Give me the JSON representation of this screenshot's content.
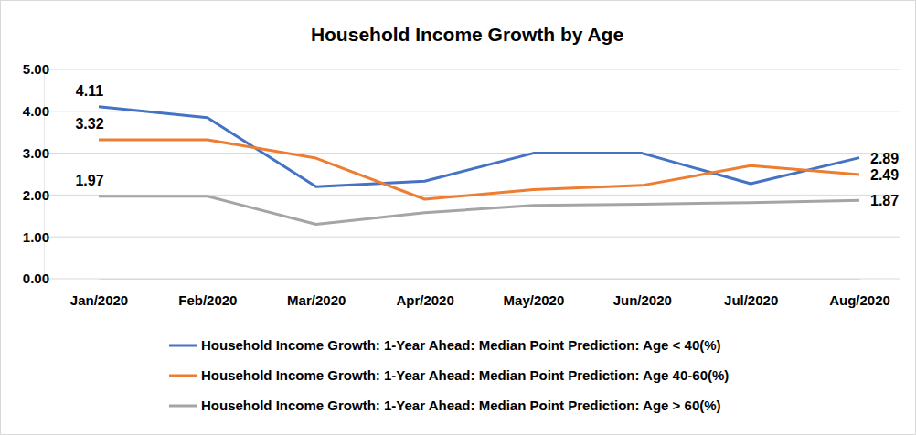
{
  "chart_data": {
    "type": "line",
    "title": "Household Income Growth by Age",
    "categories": [
      "Jan/2020",
      "Feb/2020",
      "Mar/2020",
      "Apr/2020",
      "May/2020",
      "Jun/2020",
      "Jul/2020",
      "Aug/2020"
    ],
    "series": [
      {
        "name": "Household Income Growth: 1-Year Ahead: Median Point Prediction: Age < 40(%)",
        "color": "#4472c4",
        "values": [
          4.11,
          3.85,
          2.2,
          2.33,
          3.0,
          3.0,
          2.27,
          2.89
        ],
        "value_labels": [
          "4.11",
          null,
          null,
          null,
          null,
          null,
          null,
          "2.89"
        ]
      },
      {
        "name": "Household Income Growth: 1-Year Ahead: Median Point Prediction: Age 40-60(%)",
        "color": "#ed7d31",
        "values": [
          3.32,
          3.32,
          2.88,
          1.9,
          2.13,
          2.23,
          2.7,
          2.49
        ],
        "value_labels": [
          "3.32",
          null,
          null,
          null,
          null,
          null,
          null,
          "2.49"
        ]
      },
      {
        "name": "Household Income Growth: 1-Year Ahead: Median Point Prediction: Age > 60(%)",
        "color": "#a5a5a5",
        "values": [
          1.97,
          1.97,
          1.3,
          1.58,
          1.75,
          1.78,
          1.82,
          1.87
        ],
        "value_labels": [
          "1.97",
          null,
          null,
          null,
          null,
          null,
          null,
          "1.87"
        ]
      }
    ],
    "ylim": [
      0,
      5
    ],
    "yticks": [
      {
        "value": 0,
        "label": "0.00"
      },
      {
        "value": 1,
        "label": "1.00"
      },
      {
        "value": 2,
        "label": "2.00"
      },
      {
        "value": 3,
        "label": "3.00"
      },
      {
        "value": 4,
        "label": "4.00"
      },
      {
        "value": 5,
        "label": "5.00"
      }
    ],
    "grid": true,
    "legend": "bottom",
    "data_labels": true
  }
}
